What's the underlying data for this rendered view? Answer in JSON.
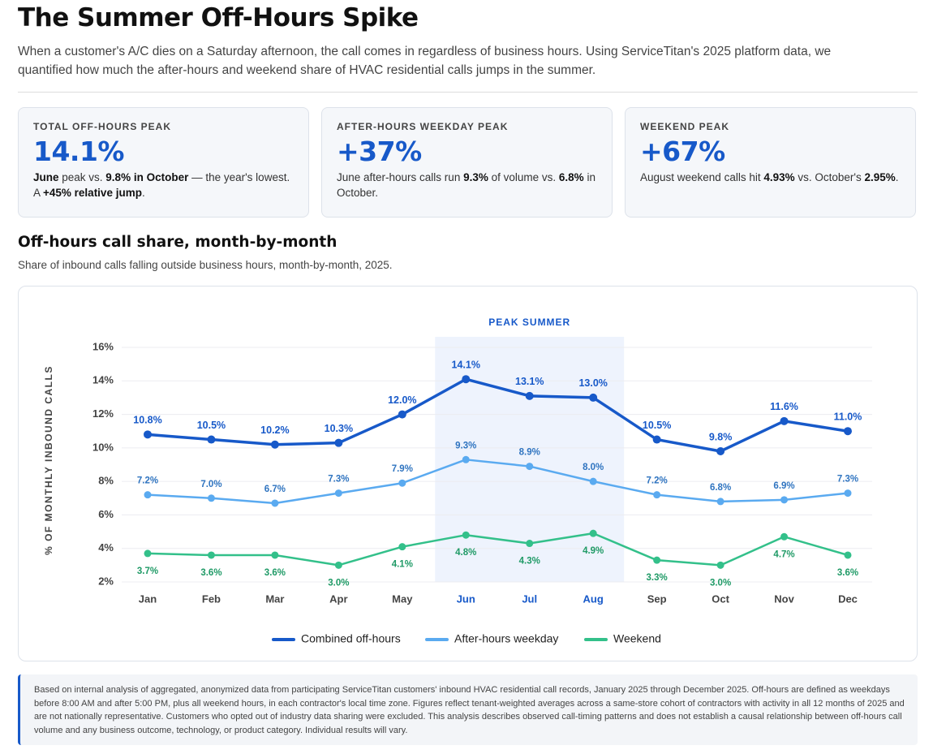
{
  "header": {
    "title": "The Summer Off-Hours Spike",
    "subtitle": "When a customer's A/C dies on a Saturday afternoon, the call comes in regardless of business hours. Using ServiceTitan's 2025 platform data, we quantified how much the after-hours and weekend share of HVAC residential calls jumps in the summer."
  },
  "cards": [
    {
      "label": "TOTAL OFF-HOURS PEAK",
      "value": "14.1%",
      "body": [
        {
          "text": "June",
          "bold": true
        },
        {
          "text": " peak vs. ",
          "bold": false
        },
        {
          "text": "9.8% in October",
          "bold": true
        },
        {
          "text": " — the year's lowest. A ",
          "bold": false
        },
        {
          "text": "+45% relative jump",
          "bold": true
        },
        {
          "text": ".",
          "bold": false
        }
      ]
    },
    {
      "label": "AFTER-HOURS WEEKDAY PEAK",
      "value": "+37%",
      "body": [
        {
          "text": "June after-hours calls run ",
          "bold": false
        },
        {
          "text": "9.3%",
          "bold": true
        },
        {
          "text": " of volume vs. ",
          "bold": false
        },
        {
          "text": "6.8%",
          "bold": true
        },
        {
          "text": " in October.",
          "bold": false
        }
      ]
    },
    {
      "label": "WEEKEND PEAK",
      "value": "+67%",
      "body": [
        {
          "text": "August weekend calls hit ",
          "bold": false
        },
        {
          "text": "4.93%",
          "bold": true
        },
        {
          "text": " vs. October's ",
          "bold": false
        },
        {
          "text": "2.95%",
          "bold": true
        },
        {
          "text": ".",
          "bold": false
        }
      ]
    }
  ],
  "chart_data": {
    "type": "line",
    "title": "Off-hours call share, month-by-month",
    "subtitle": "Share of inbound calls falling outside business hours, month-by-month, 2025.",
    "y_label": "% OF MONTHLY INBOUND CALLS",
    "highlight": {
      "label": "PEAK SUMMER",
      "from": "Jun",
      "to": "Aug"
    },
    "categories": [
      "Jan",
      "Feb",
      "Mar",
      "Apr",
      "May",
      "Jun",
      "Jul",
      "Aug",
      "Sep",
      "Oct",
      "Nov",
      "Dec"
    ],
    "ylim": [
      2,
      16
    ],
    "yticks": [
      {
        "value": 2,
        "label": "2%"
      },
      {
        "value": 4,
        "label": "4%"
      },
      {
        "value": 6,
        "label": "6%"
      },
      {
        "value": 8,
        "label": "8%"
      },
      {
        "value": 10,
        "label": "10%"
      },
      {
        "value": 12,
        "label": "12%"
      },
      {
        "value": 14,
        "label": "14%"
      },
      {
        "value": 16,
        "label": "16%"
      }
    ],
    "grid": true,
    "legend": "bottom",
    "series": [
      {
        "name": "Combined off-hours",
        "color": "#1759c9",
        "label_color": "#1759c9",
        "label_position": "above",
        "values": [
          10.8,
          10.5,
          10.2,
          10.3,
          12.0,
          14.1,
          13.1,
          13.0,
          10.5,
          9.8,
          11.6,
          11.0
        ],
        "value_labels": [
          "10.8%",
          "10.5%",
          "10.2%",
          "10.3%",
          "12.0%",
          "14.1%",
          "13.1%",
          "13.0%",
          "10.5%",
          "9.8%",
          "11.6%",
          "11.0%"
        ]
      },
      {
        "name": "After-hours weekday",
        "color": "#5aaaf0",
        "label_color": "#2f74c0",
        "label_position": "above",
        "values": [
          7.2,
          7.0,
          6.7,
          7.3,
          7.9,
          9.3,
          8.9,
          8.0,
          7.2,
          6.8,
          6.9,
          7.3
        ],
        "value_labels": [
          "7.2%",
          "7.0%",
          "6.7%",
          "7.3%",
          "7.9%",
          "9.3%",
          "8.9%",
          "8.0%",
          "7.2%",
          "6.8%",
          "6.9%",
          "7.3%"
        ]
      },
      {
        "name": "Weekend",
        "color": "#33c08a",
        "label_color": "#1f9a66",
        "label_position": "below",
        "values": [
          3.7,
          3.6,
          3.6,
          3.0,
          4.1,
          4.8,
          4.3,
          4.9,
          3.3,
          3.0,
          4.7,
          3.6
        ],
        "value_labels": [
          "3.7%",
          "3.6%",
          "3.6%",
          "3.0%",
          "4.1%",
          "4.8%",
          "4.3%",
          "4.9%",
          "3.3%",
          "3.0%",
          "4.7%",
          "3.6%"
        ]
      }
    ]
  },
  "footnote": "Based on internal analysis of aggregated, anonymized data from participating ServiceTitan customers' inbound HVAC residential call records, January 2025 through December 2025. Off-hours are defined as weekdays before 8:00 AM and after 5:00 PM, plus all weekend hours, in each contractor's local time zone. Figures reflect tenant-weighted averages across a same-store cohort of contractors with activity in all 12 months of 2025 and are not nationally representative. Customers who opted out of industry data sharing were excluded. This analysis describes observed call-timing patterns and does not establish a causal relationship between off-hours call volume and any business outcome, technology, or product category. Individual results will vary."
}
